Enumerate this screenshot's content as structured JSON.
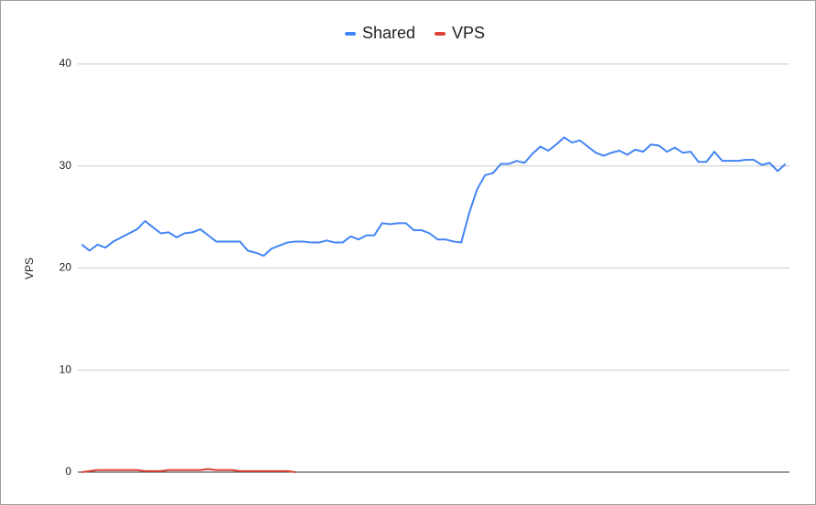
{
  "chart_data": {
    "type": "line",
    "ylabel": "VPS",
    "categories": [
      null,
      null,
      null,
      null,
      null,
      null,
      null,
      null,
      null,
      null,
      null,
      null,
      null,
      null,
      null,
      null,
      null,
      null,
      null,
      null,
      null,
      null,
      null,
      null,
      null,
      null,
      null,
      null,
      null,
      null,
      null,
      null,
      null,
      null,
      null,
      null,
      null,
      null,
      null,
      null,
      null,
      null,
      null,
      null,
      null,
      null,
      null,
      null,
      null,
      null,
      null,
      null,
      null,
      null,
      null,
      null,
      null,
      null,
      null,
      null,
      null,
      null,
      null,
      null,
      null,
      null,
      null,
      null,
      null,
      null,
      null,
      null,
      null,
      null,
      null,
      null,
      null,
      null,
      null,
      null,
      null,
      null,
      null,
      null,
      null,
      null,
      null,
      null,
      null,
      null
    ],
    "series": [
      {
        "name": "Shared",
        "color": "#4285f4",
        "values": [
          22.3,
          21.7,
          22.3,
          22.0,
          22.6,
          23.0,
          23.4,
          23.8,
          24.6,
          24.0,
          23.4,
          23.5,
          23.0,
          23.4,
          23.5,
          23.8,
          23.2,
          22.6,
          22.6,
          22.6,
          22.6,
          21.7,
          21.5,
          21.2,
          21.9,
          22.2,
          22.5,
          22.6,
          22.6,
          22.5,
          22.5,
          22.7,
          22.5,
          22.5,
          23.1,
          22.8,
          23.2,
          23.2,
          24.4,
          24.3,
          24.4,
          24.4,
          23.7,
          23.7,
          23.4,
          22.8,
          22.8,
          22.6,
          22.5,
          25.4,
          27.7,
          29.1,
          29.3,
          30.2,
          30.2,
          30.5,
          30.3,
          31.2,
          31.9,
          31.5,
          32.1,
          32.8,
          32.3,
          32.5,
          31.9,
          31.3,
          31.0,
          31.3,
          31.5,
          31.1,
          31.6,
          31.4,
          32.1,
          32.0,
          31.4,
          31.8,
          31.3,
          31.4,
          30.4,
          30.4,
          31.4,
          30.5,
          30.5,
          30.5,
          30.6,
          30.6,
          30.1,
          30.3,
          29.5,
          30.2
        ]
      },
      {
        "name": "VPS",
        "color": "#db4437",
        "values": [
          0.0,
          0.1,
          0.2,
          0.2,
          0.2,
          0.2,
          0.2,
          0.2,
          0.1,
          0.1,
          0.1,
          0.2,
          0.2,
          0.2,
          0.2,
          0.2,
          0.3,
          0.2,
          0.2,
          0.2,
          0.1,
          0.1,
          0.1,
          0.1,
          0.1,
          0.1,
          0.1,
          0.0,
          null,
          null,
          null,
          null,
          null,
          null,
          null,
          null,
          null,
          null,
          null,
          null,
          null,
          null,
          null,
          null,
          null,
          null,
          null,
          null,
          null,
          null,
          null,
          null,
          null,
          null,
          null,
          null,
          null,
          null,
          null,
          null,
          null,
          null,
          null,
          null,
          null,
          null,
          null,
          null,
          null,
          null,
          null,
          null,
          null,
          null,
          null,
          null,
          null,
          null,
          null,
          null,
          null,
          null,
          null,
          null,
          null,
          null,
          null,
          null,
          null,
          null
        ]
      }
    ],
    "ylim": [
      0,
      40
    ],
    "yticks": [
      0,
      10,
      20,
      30,
      40
    ],
    "grid": true,
    "legend": "top"
  }
}
